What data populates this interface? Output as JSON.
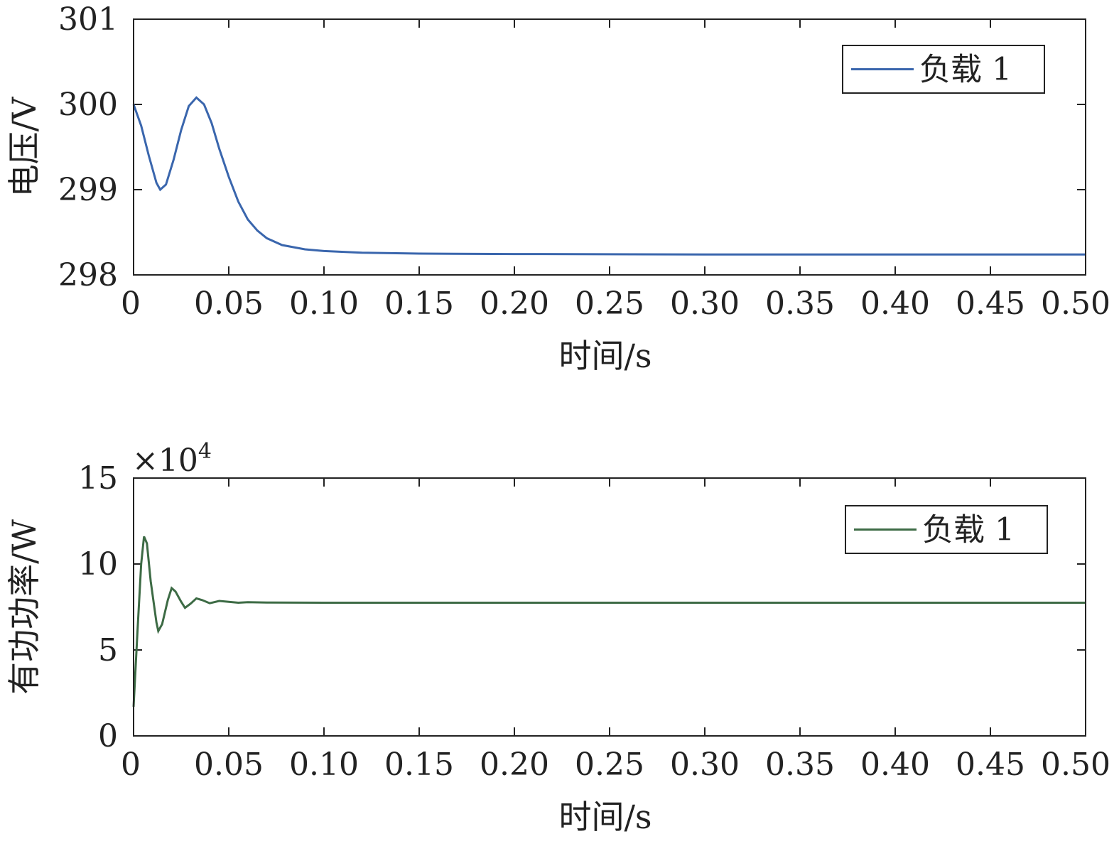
{
  "chart_data": [
    {
      "type": "line",
      "xlabel": "时间/s",
      "ylabel": "电压/V",
      "xlim": [
        0,
        0.5
      ],
      "ylim": [
        298,
        301
      ],
      "x_ticks": [
        0,
        0.05,
        0.1,
        0.15,
        0.2,
        0.25,
        0.3,
        0.35,
        0.4,
        0.45,
        0.5
      ],
      "x_tick_labels": [
        "0",
        "0.05",
        "0.10",
        "0.15",
        "0.20",
        "0.25",
        "0.30",
        "0.35",
        "0.40",
        "0.45",
        "0.50"
      ],
      "y_ticks": [
        298,
        299,
        300,
        301
      ],
      "y_tick_labels": [
        "298",
        "299",
        "300",
        "301"
      ],
      "legend_position": "top-right",
      "grid": false,
      "series": [
        {
          "name": "负载 1",
          "color": "#3a66ad",
          "points": [
            [
              0,
              300.0
            ],
            [
              0.004,
              299.75
            ],
            [
              0.008,
              299.4
            ],
            [
              0.012,
              299.08
            ],
            [
              0.014,
              299.0
            ],
            [
              0.017,
              299.06
            ],
            [
              0.021,
              299.35
            ],
            [
              0.025,
              299.7
            ],
            [
              0.029,
              299.98
            ],
            [
              0.033,
              300.08
            ],
            [
              0.037,
              300.0
            ],
            [
              0.041,
              299.78
            ],
            [
              0.045,
              299.48
            ],
            [
              0.05,
              299.15
            ],
            [
              0.055,
              298.86
            ],
            [
              0.06,
              298.65
            ],
            [
              0.065,
              298.52
            ],
            [
              0.07,
              298.43
            ],
            [
              0.078,
              298.35
            ],
            [
              0.09,
              298.3
            ],
            [
              0.1,
              298.28
            ],
            [
              0.12,
              298.26
            ],
            [
              0.15,
              298.25
            ],
            [
              0.2,
              298.245
            ],
            [
              0.3,
              298.24
            ],
            [
              0.4,
              298.24
            ],
            [
              0.5,
              298.24
            ]
          ]
        }
      ]
    },
    {
      "type": "line",
      "xlabel": "时间/s",
      "ylabel": "有功功率/W",
      "y_multiplier": "×10",
      "y_multiplier_exp": "4",
      "xlim": [
        0,
        0.5
      ],
      "ylim": [
        0,
        15
      ],
      "x_ticks": [
        0,
        0.05,
        0.1,
        0.15,
        0.2,
        0.25,
        0.3,
        0.35,
        0.4,
        0.45,
        0.5
      ],
      "x_tick_labels": [
        "0",
        "0.05",
        "0.10",
        "0.15",
        "0.20",
        "0.25",
        "0.30",
        "0.35",
        "0.40",
        "0.45",
        "0.50"
      ],
      "y_ticks": [
        0,
        5,
        10,
        15
      ],
      "y_tick_labels": [
        "0",
        "5",
        "10",
        "15"
      ],
      "legend_position": "top-right",
      "grid": false,
      "series": [
        {
          "name": "负载 1",
          "color": "#3d6b45",
          "points": [
            [
              0,
              1.7
            ],
            [
              0.002,
              6.0
            ],
            [
              0.004,
              10.0
            ],
            [
              0.0055,
              11.6
            ],
            [
              0.007,
              11.2
            ],
            [
              0.009,
              9.0
            ],
            [
              0.012,
              6.6
            ],
            [
              0.013,
              6.1
            ],
            [
              0.015,
              6.5
            ],
            [
              0.018,
              7.9
            ],
            [
              0.02,
              8.6
            ],
            [
              0.022,
              8.4
            ],
            [
              0.025,
              7.8
            ],
            [
              0.027,
              7.45
            ],
            [
              0.03,
              7.7
            ],
            [
              0.033,
              8.0
            ],
            [
              0.036,
              7.9
            ],
            [
              0.04,
              7.72
            ],
            [
              0.045,
              7.85
            ],
            [
              0.05,
              7.8
            ],
            [
              0.055,
              7.75
            ],
            [
              0.06,
              7.78
            ],
            [
              0.07,
              7.76
            ],
            [
              0.1,
              7.75
            ],
            [
              0.2,
              7.75
            ],
            [
              0.3,
              7.75
            ],
            [
              0.4,
              7.75
            ],
            [
              0.5,
              7.75
            ]
          ]
        }
      ]
    }
  ]
}
